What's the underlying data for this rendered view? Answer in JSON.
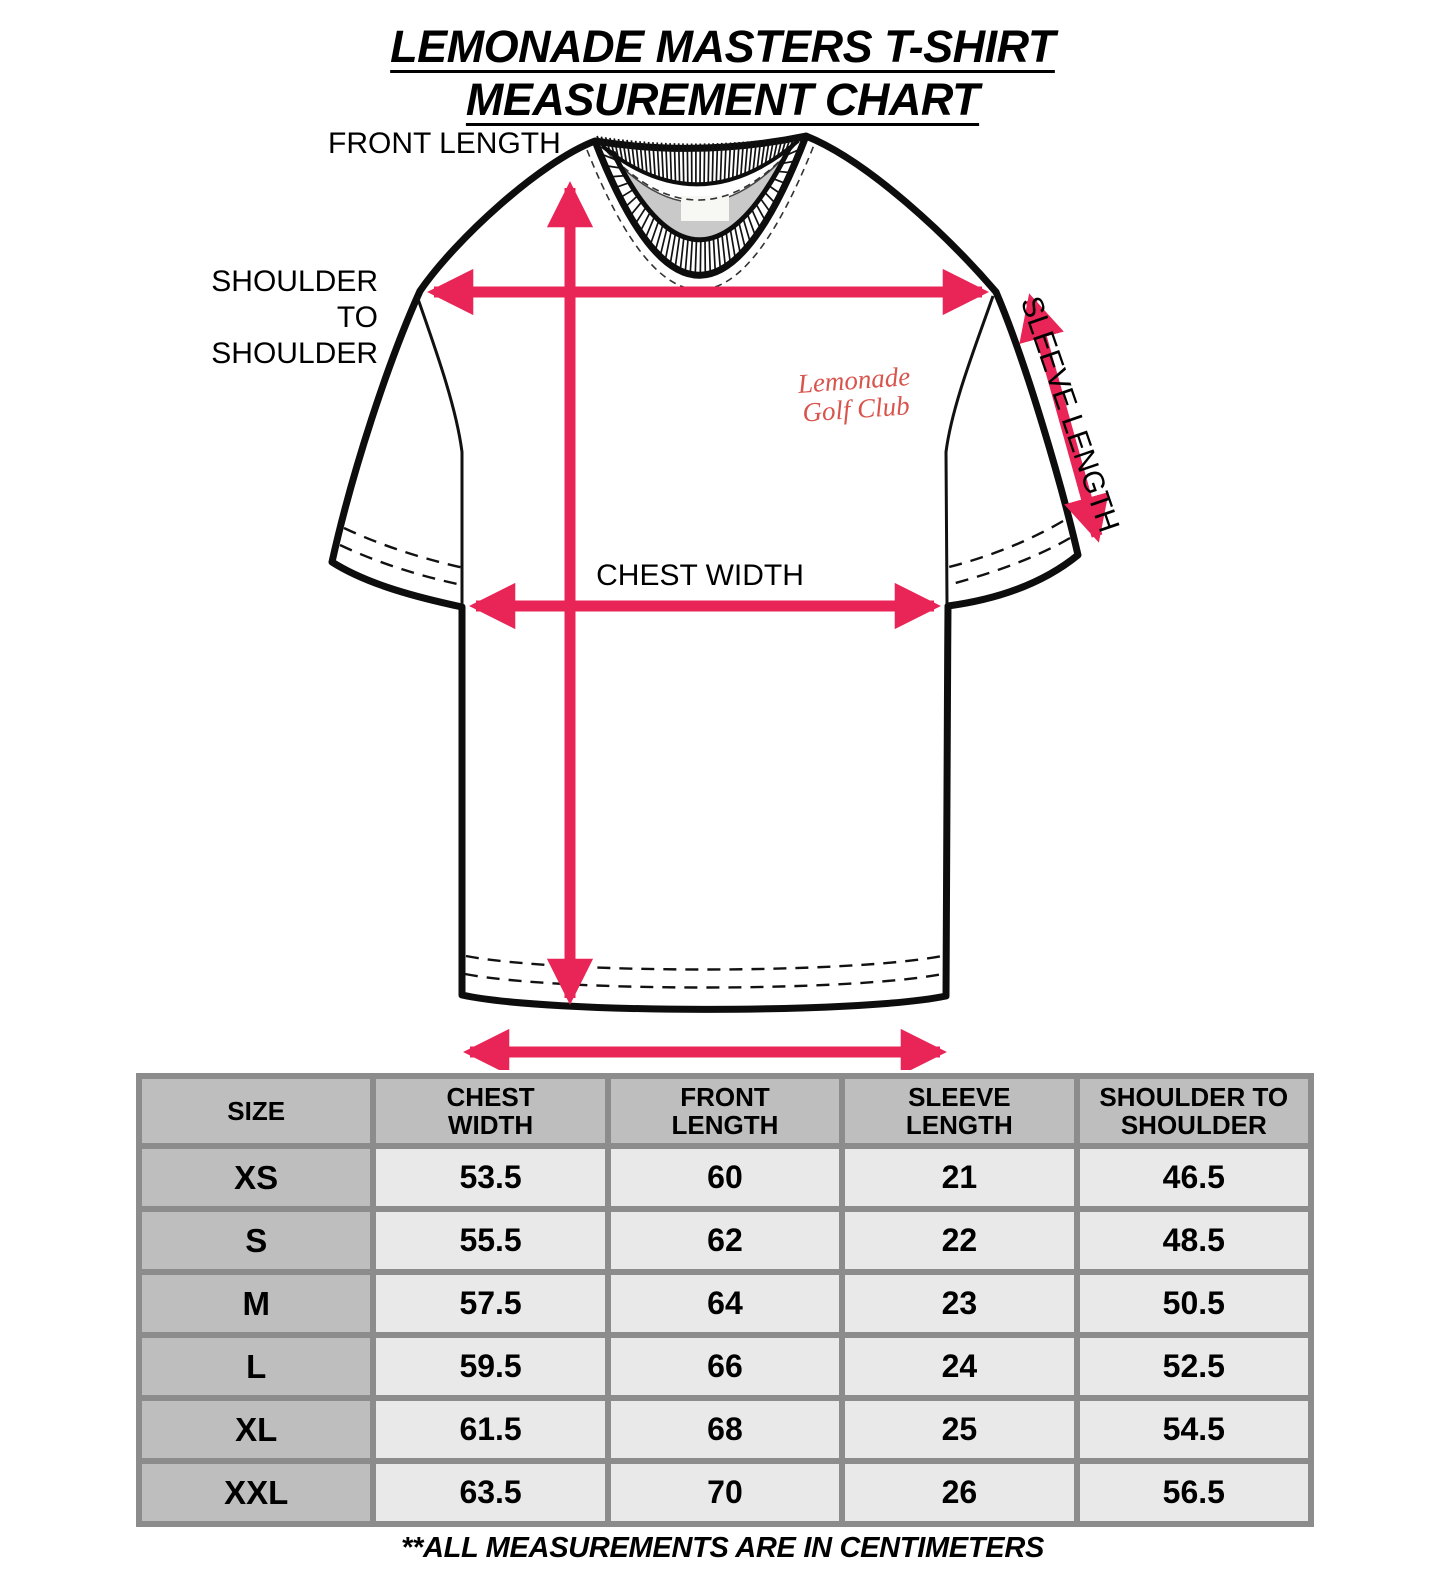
{
  "title": {
    "line1": "LEMONADE MASTERS T-SHIRT",
    "line2": "MEASUREMENT CHART"
  },
  "diagram": {
    "labels": {
      "front_length": "FRONT LENGTH",
      "shoulder_to_shoulder": "SHOULDER\nTO\nSHOULDER",
      "chest_width": "CHEST WIDTH",
      "sleeve_length": "SLEEVE LENGTH"
    },
    "logo": {
      "line1": "Lemonade",
      "line2": "Golf Club",
      "color": "#d8544c"
    },
    "arrow_color": "#e82556"
  },
  "table": {
    "columns": [
      "SIZE",
      "CHEST\nWIDTH",
      "FRONT\nLENGTH",
      "SLEEVE\nLENGTH",
      "SHOULDER TO\nSHOULDER"
    ],
    "rows": [
      {
        "size": "XS",
        "values": [
          "53.5",
          "60",
          "21",
          "46.5"
        ]
      },
      {
        "size": "S",
        "values": [
          "55.5",
          "62",
          "22",
          "48.5"
        ]
      },
      {
        "size": "M",
        "values": [
          "57.5",
          "64",
          "23",
          "50.5"
        ]
      },
      {
        "size": "L",
        "values": [
          "59.5",
          "66",
          "24",
          "52.5"
        ]
      },
      {
        "size": "XL",
        "values": [
          "61.5",
          "68",
          "25",
          "54.5"
        ]
      },
      {
        "size": "XXL",
        "values": [
          "63.5",
          "70",
          "26",
          "56.5"
        ]
      }
    ]
  },
  "footnote": "**ALL MEASUREMENTS ARE IN CENTIMETERS"
}
